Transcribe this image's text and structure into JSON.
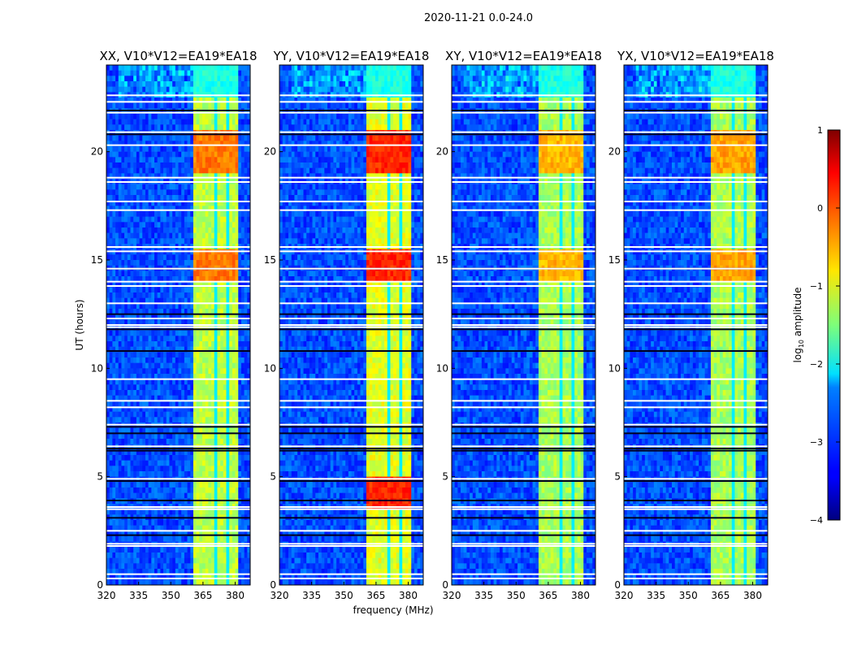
{
  "figure": {
    "suptitle": "2020-11-21 0.0-24.0"
  },
  "chart_data": {
    "type": "heatmap",
    "xlabel": "frequency (MHz)",
    "ylabel": "UT (hours)",
    "xlim": [
      320,
      387
    ],
    "ylim": [
      0,
      24
    ],
    "xticks": [
      "320",
      "335",
      "350",
      "365",
      "380"
    ],
    "xtick_values": [
      320,
      335,
      350,
      365,
      380
    ],
    "yticks": [
      "0",
      "5",
      "10",
      "15",
      "20"
    ],
    "ytick_values": [
      0,
      5,
      10,
      15,
      20
    ],
    "panels": [
      {
        "title": "XX, V10*V12=EA19*EA18",
        "band_level": -1.2,
        "peak_level": -0.3
      },
      {
        "title": "YY, V10*V12=EA19*EA18",
        "band_level": -1.0,
        "peak_level": 0.1
      },
      {
        "title": "XY, V10*V12=EA19*EA18",
        "band_level": -1.3,
        "peak_level": -0.6
      },
      {
        "title": "YX, V10*V12=EA19*EA18",
        "band_level": -1.3,
        "peak_level": -0.5
      }
    ],
    "background_level": -3.0,
    "band_range_mhz": [
      361,
      381
    ],
    "band_gaps_mhz": [
      366,
      371,
      376
    ],
    "flagged_hours": [
      0.3,
      0.5,
      1.8,
      1.9,
      2.5,
      3.5,
      3.6,
      4.9,
      6.4,
      7.4,
      8.2,
      8.5,
      9.5,
      11.9,
      12.0,
      12.3,
      13.0,
      13.8,
      14.0,
      14.6,
      15.4,
      15.6,
      17.3,
      17.7,
      18.6,
      18.8,
      20.3,
      20.9,
      21.8,
      22.3,
      22.6
    ],
    "dark_hours": [
      2.3,
      3.1,
      3.9,
      4.8,
      6.2,
      6.3,
      7.0,
      7.3,
      10.8,
      11.8,
      12.5,
      14.6,
      20.8,
      21.9
    ],
    "colorbar": {
      "label": "log10 amplitude",
      "label_main": "log",
      "label_sub": "10",
      "label_rest": " amplitude",
      "range": [
        -4,
        1
      ],
      "ticks": [
        "1",
        "0",
        "−1",
        "−2",
        "−3",
        "−4"
      ],
      "tick_values": [
        1,
        0,
        -1,
        -2,
        -3,
        -4
      ],
      "colormap": "jet"
    }
  }
}
